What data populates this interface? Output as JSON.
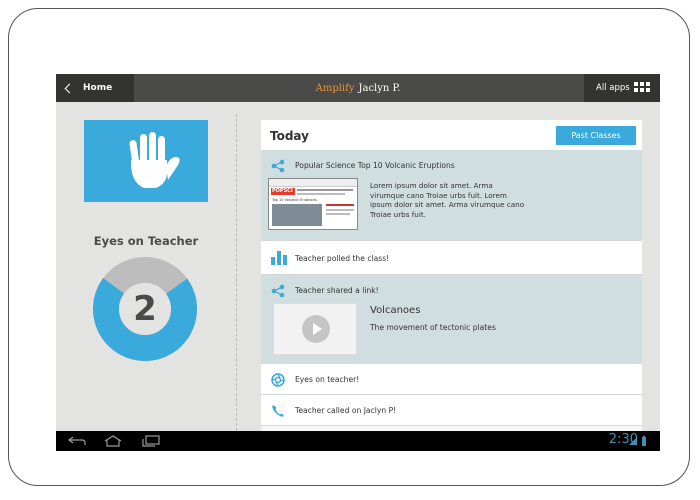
{
  "topbar": {
    "home_label": "Home",
    "brand_name": "Amplify",
    "user_name": "Jaclyn P.",
    "all_apps_label": "All apps"
  },
  "left": {
    "eyes_title": "Eyes on Teacher",
    "count": "2",
    "donut_fraction_blue": 0.7
  },
  "feed": {
    "title": "Today",
    "past_classes_label": "Past Classes",
    "items": [
      {
        "icon": "share-icon",
        "text": "Popular Science Top 10 Volcanic Eruptions",
        "body": "Lorem ipsum dolor sit amet. Arma virumque cano Troiae urbs fuit. Lorem ipsum dolor sit amet. Arma virumque cano Troiae urbs fuit."
      },
      {
        "icon": "bar-chart-icon",
        "text": "Teacher polled the class!"
      },
      {
        "icon": "share-icon",
        "text": "Teacher shared a link!",
        "link_title": "Volcanoes",
        "link_subtitle": "The movement of tectonic plates"
      },
      {
        "icon": "aperture-icon",
        "text": "Eyes on teacher!"
      },
      {
        "icon": "phone-icon",
        "text": "Teacher called on Jaclyn P!"
      }
    ]
  },
  "thumbnail": {
    "masthead": "POPSCI",
    "headline": "Top 10 Volcanic Eruptions"
  },
  "status": {
    "time": "2:30"
  },
  "colors": {
    "accent_blue": "#3aa9dc",
    "brand_orange": "#e6933a",
    "donut_gray": "#bdbdbd"
  }
}
